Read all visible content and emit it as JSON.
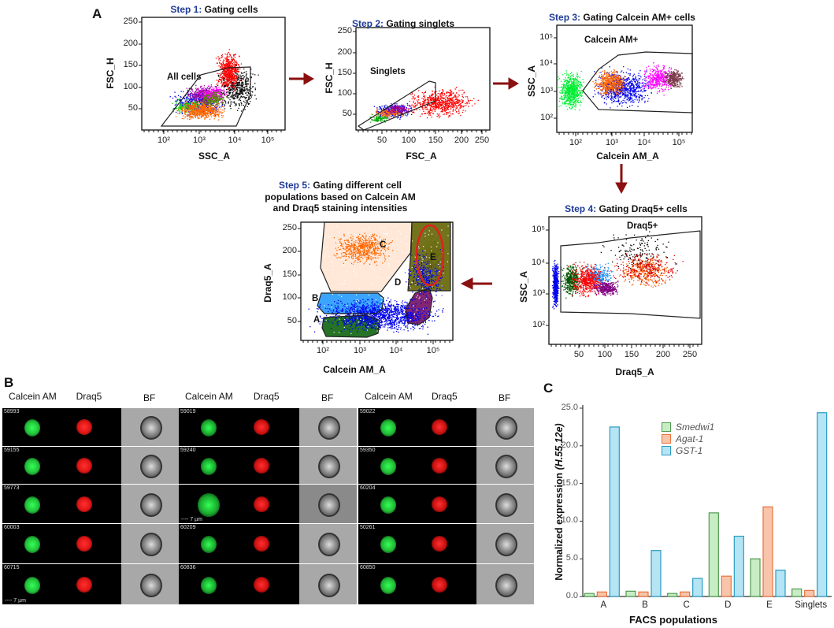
{
  "panels": {
    "a": "A",
    "b": "B",
    "c": "C"
  },
  "step1": {
    "step": "Step 1:",
    "title": "Gating cells",
    "gate": "All cells",
    "xlabel": "SSC_A",
    "ylabel": "FSC_H",
    "yticks": [
      "250",
      "200",
      "150",
      "100",
      "50"
    ],
    "xticks": [
      "10²",
      "10³",
      "10⁴",
      "10⁵"
    ]
  },
  "step2": {
    "step": "Step 2:",
    "title": "Gating singlets",
    "gate": "Singlets",
    "xlabel": "FSC_A",
    "ylabel": "FSC_H",
    "yticks": [
      "250",
      "200",
      "150",
      "100",
      "50"
    ],
    "xticks": [
      "50",
      "100",
      "150",
      "200",
      "250"
    ]
  },
  "step3": {
    "step": "Step 3:",
    "title": "Gating Calcein AM+ cells",
    "gate": "Calcein AM+",
    "xlabel": "Calcein AM_A",
    "ylabel": "SSC_A",
    "yticks": [
      "10⁵",
      "10⁴",
      "10³",
      "10²"
    ],
    "xticks": [
      "10²",
      "10³",
      "10⁴",
      "10⁵"
    ]
  },
  "step4": {
    "step": "Step 4:",
    "title": "Gating Draq5+ cells",
    "gate": "Draq5+",
    "xlabel": "Draq5_A",
    "ylabel": "SSC_A",
    "yticks": [
      "10⁵",
      "10⁴",
      "10³",
      "10²"
    ],
    "xticks": [
      "50",
      "100",
      "150",
      "200",
      "250"
    ]
  },
  "step5": {
    "step": "Step 5:",
    "title_line1": "Gating different cell",
    "title_line2": "populations based on Calcein AM",
    "title_line3": "and Draq5 staining intensities",
    "xlabel": "Calcein AM_A",
    "ylabel": "Draq5_A",
    "yticks": [
      "250",
      "200",
      "150",
      "100",
      "50"
    ],
    "xticks": [
      "10²",
      "10³",
      "10⁴",
      "10⁵"
    ],
    "gates": [
      "A",
      "B",
      "C",
      "D",
      "E"
    ]
  },
  "imaging": {
    "headers": [
      "Calcein AM",
      "Draq5",
      "BF"
    ],
    "scale_bar": "7 µm",
    "groups": [
      {
        "ids": [
          "58993",
          "59155",
          "59773",
          "60003",
          "60715"
        ]
      },
      {
        "ids": [
          "59019",
          "59240",
          "",
          "60209",
          "60836"
        ]
      },
      {
        "ids": [
          "59022",
          "59350",
          "60204",
          "50261",
          "60850"
        ]
      }
    ]
  },
  "colors": {
    "smedwi1": "#c8edc4",
    "smedwi1_edge": "#4f9a4f",
    "agat1": "#f8c4aa",
    "agat1_edge": "#e8733c",
    "gst1": "#b5e4f4",
    "gst1_edge": "#2b9bc2"
  },
  "chart_data": {
    "type": "bar",
    "title": "",
    "xlabel": "FACS populations",
    "ylabel": "Normalized expression",
    "ylabel_italic": "(H.55.12e)",
    "ylim": [
      0,
      25
    ],
    "yticks": [
      "0.0",
      "5.0",
      "10.0",
      "15.0",
      "20.0",
      "25.0"
    ],
    "categories": [
      "A",
      "B",
      "C",
      "D",
      "E",
      "Singlets"
    ],
    "legend_position": "top-center",
    "series": [
      {
        "name": "Smedwi1",
        "values": [
          0.4,
          0.7,
          0.4,
          11.1,
          5.0,
          1.0
        ]
      },
      {
        "name": "Agat-1",
        "values": [
          0.6,
          0.6,
          0.6,
          2.7,
          11.9,
          0.8
        ]
      },
      {
        "name": "GST-1",
        "values": [
          22.5,
          6.1,
          2.4,
          8.0,
          3.5,
          24.4
        ]
      }
    ]
  }
}
